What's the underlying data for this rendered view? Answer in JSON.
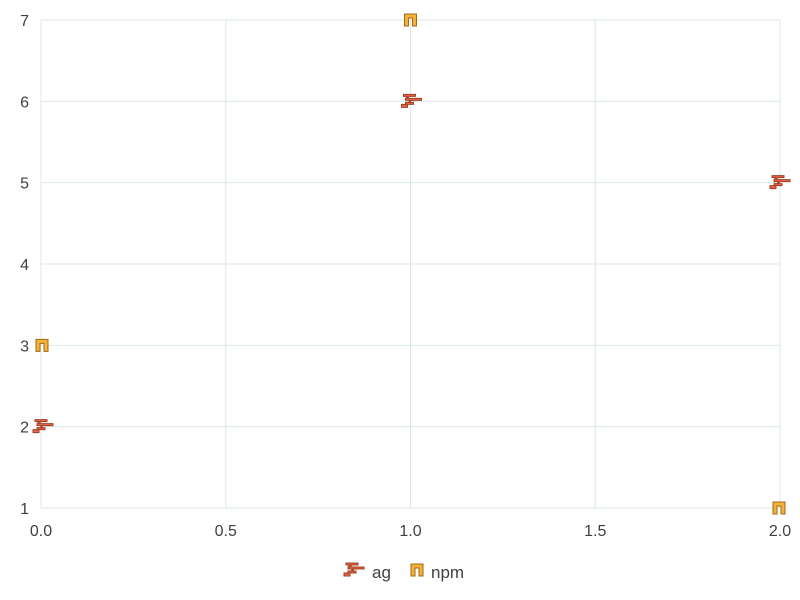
{
  "chart_data": {
    "type": "scatter",
    "title": "",
    "xlabel": "",
    "ylabel": "",
    "xlim": [
      0,
      2
    ],
    "ylim": [
      1,
      7
    ],
    "x_ticks": [
      "0.0",
      "0.5",
      "1.0",
      "1.5",
      "2.0"
    ],
    "y_ticks": [
      "1",
      "2",
      "3",
      "4",
      "5",
      "6",
      "7"
    ],
    "grid": true,
    "legend": "bottom-center",
    "series": [
      {
        "name": "ag",
        "color": "#e8643c",
        "marker": "zigzag-icon",
        "points": [
          {
            "x": 0,
            "y": 2
          },
          {
            "x": 1,
            "y": 6
          },
          {
            "x": 2,
            "y": 5
          }
        ]
      },
      {
        "name": "npm",
        "color": "#f4b23c",
        "marker": "bracket-icon",
        "points": [
          {
            "x": 0,
            "y": 3
          },
          {
            "x": 1,
            "y": 7
          },
          {
            "x": 2,
            "y": 1
          }
        ]
      }
    ]
  }
}
